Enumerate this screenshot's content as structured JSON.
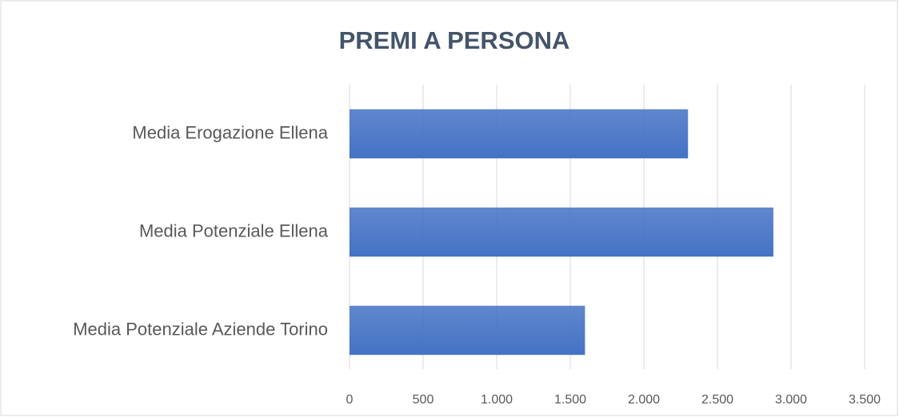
{
  "chart_data": {
    "type": "bar",
    "orientation": "horizontal",
    "title": "PREMI A PERSONA",
    "categories": [
      "Media Erogazione Ellena",
      "Media Potenziale Ellena",
      "Media Potenziale Aziende Torino"
    ],
    "values": [
      2300,
      2880,
      1600
    ],
    "color": "#4472c4",
    "xlim": [
      0,
      3500
    ],
    "xticks": [
      0,
      500,
      {
        "value": 1000,
        "label": "1.000"
      },
      {
        "value": 1500,
        "label": "1.500"
      },
      {
        "value": 2000,
        "label": "2.000"
      },
      {
        "value": 2500,
        "label": "2.500"
      },
      {
        "value": 3000,
        "label": "3.000"
      },
      {
        "value": 3500,
        "label": "3.500"
      }
    ],
    "grid": true
  }
}
